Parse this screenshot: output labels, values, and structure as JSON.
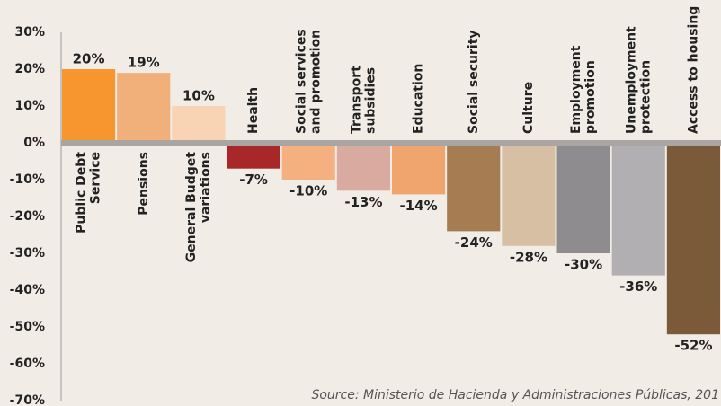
{
  "chart_data": {
    "type": "bar",
    "categories": [
      [
        "Public Debt",
        "Service"
      ],
      [
        "Pensions"
      ],
      [
        "General Budget",
        "variations"
      ],
      [
        "Health"
      ],
      [
        "Social services",
        "and promotion"
      ],
      [
        "Transport",
        "subsidies"
      ],
      [
        "Education"
      ],
      [
        "Social security"
      ],
      [
        "Culture"
      ],
      [
        "Employment",
        "promotion"
      ],
      [
        "Unemployment",
        "protection"
      ],
      [
        "Access to housing"
      ]
    ],
    "values": [
      20,
      19,
      10,
      -7,
      -10,
      -13,
      -14,
      -24,
      -28,
      -30,
      -36,
      -52
    ],
    "value_labels": [
      "20%",
      "19%",
      "10%",
      "-7%",
      "-10%",
      "-13%",
      "-14%",
      "-24%",
      "-28%",
      "-30%",
      "-36%",
      "-52%"
    ],
    "colors": [
      "#f7962e",
      "#f1b07a",
      "#f8d4b4",
      "#a8282a",
      "#f4b07f",
      "#d8aaa0",
      "#f0a56e",
      "#a67c52",
      "#d6bfa3",
      "#8e8c8f",
      "#b1afb2",
      "#7b5a3a"
    ],
    "ylim": [
      -70,
      30
    ],
    "yticks": [
      {
        "value": 30,
        "label": "30%"
      },
      {
        "value": 20,
        "label": "20%"
      },
      {
        "value": 10,
        "label": "10%"
      },
      {
        "value": 0,
        "label": "0%"
      },
      {
        "value": -10,
        "label": "-10%"
      },
      {
        "value": -20,
        "label": "-20%"
      },
      {
        "value": -30,
        "label": "-30%"
      },
      {
        "value": -40,
        "label": "-40%"
      },
      {
        "value": -50,
        "label": "-50%"
      },
      {
        "value": -60,
        "label": "-60%"
      },
      {
        "value": -70,
        "label": "-70%"
      }
    ],
    "source": "Source: Ministerio de Hacienda y Administraciones Públicas, 201"
  }
}
